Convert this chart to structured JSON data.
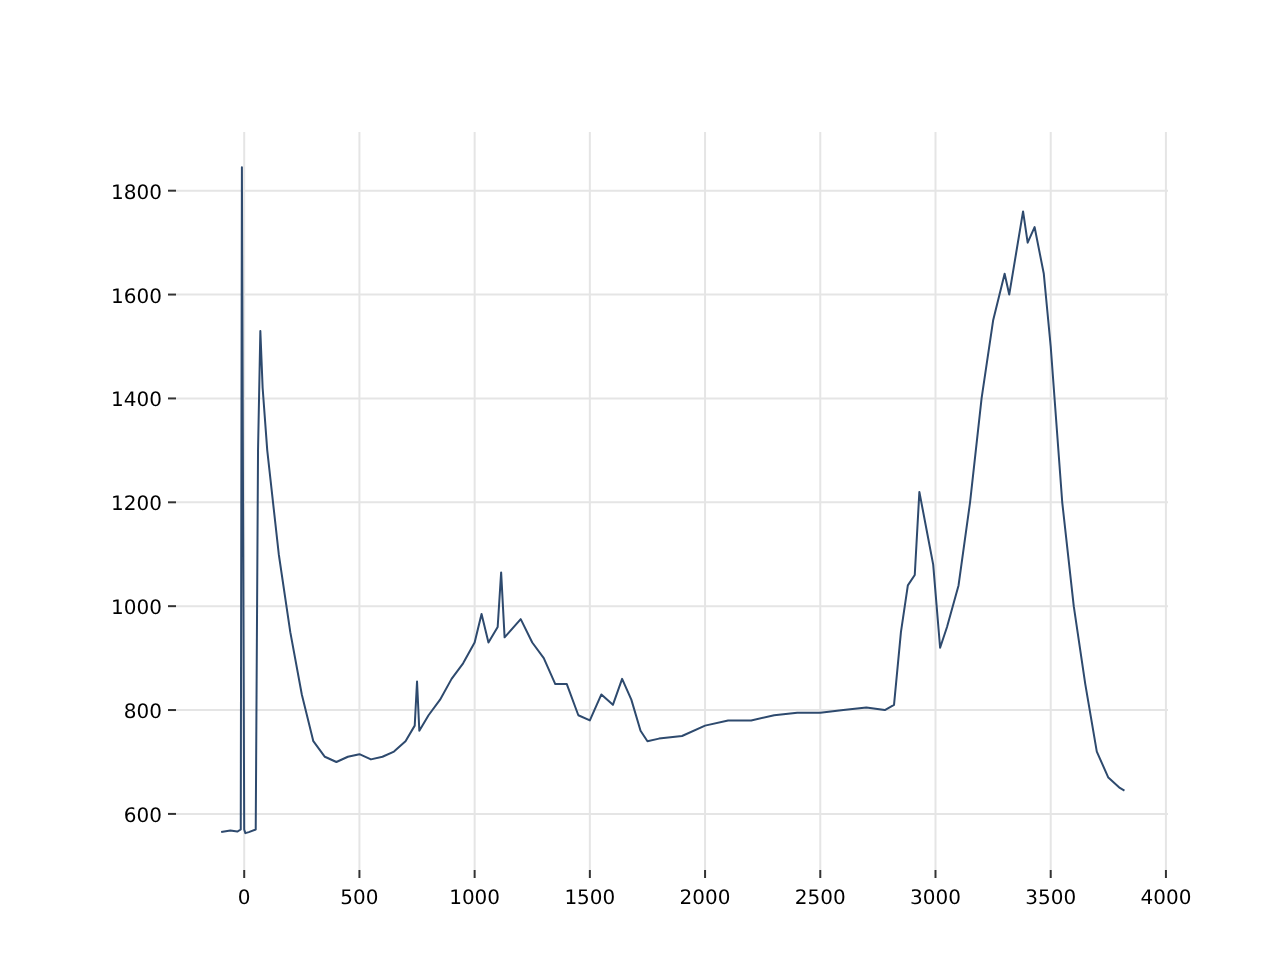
{
  "chart_data": {
    "type": "line",
    "xlim": [
      -296,
      4009
    ],
    "ylim": [
      492,
      1913
    ],
    "xticks": [
      0,
      500,
      1000,
      1500,
      2000,
      2500,
      3000,
      3500,
      4000
    ],
    "yticks": [
      600,
      800,
      1000,
      1200,
      1400,
      1600,
      1800
    ],
    "grid": true,
    "series": [
      {
        "color": "#2e4a6e",
        "x": [
          -100,
          -60,
          -30,
          -15,
          -10,
          -5,
          0,
          5,
          20,
          50,
          60,
          70,
          80,
          100,
          150,
          200,
          250,
          300,
          350,
          400,
          450,
          500,
          550,
          600,
          650,
          700,
          740,
          750,
          760,
          800,
          850,
          900,
          950,
          1000,
          1030,
          1060,
          1100,
          1115,
          1130,
          1200,
          1250,
          1300,
          1350,
          1400,
          1450,
          1500,
          1550,
          1600,
          1640,
          1680,
          1720,
          1750,
          1800,
          1900,
          2000,
          2100,
          2200,
          2300,
          2400,
          2500,
          2600,
          2700,
          2780,
          2820,
          2850,
          2880,
          2910,
          2930,
          2960,
          2990,
          3020,
          3050,
          3100,
          3150,
          3200,
          3250,
          3300,
          3320,
          3350,
          3380,
          3400,
          3430,
          3470,
          3500,
          3550,
          3600,
          3650,
          3700,
          3750,
          3800,
          3820
        ],
        "values": [
          565,
          568,
          566,
          570,
          1845,
          1200,
          570,
          563,
          565,
          570,
          1300,
          1530,
          1420,
          1300,
          1100,
          950,
          830,
          740,
          710,
          700,
          710,
          715,
          705,
          710,
          720,
          740,
          770,
          855,
          760,
          790,
          820,
          860,
          890,
          930,
          985,
          930,
          960,
          1065,
          940,
          975,
          930,
          900,
          850,
          850,
          790,
          780,
          830,
          810,
          860,
          820,
          760,
          740,
          745,
          750,
          770,
          780,
          780,
          790,
          795,
          795,
          800,
          805,
          800,
          810,
          950,
          1040,
          1060,
          1220,
          1150,
          1080,
          920,
          960,
          1040,
          1200,
          1400,
          1550,
          1640,
          1600,
          1680,
          1760,
          1700,
          1730,
          1640,
          1500,
          1200,
          1000,
          850,
          720,
          670,
          650,
          645
        ]
      }
    ]
  }
}
